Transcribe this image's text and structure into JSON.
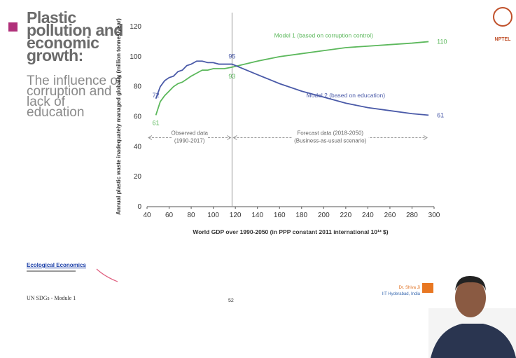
{
  "slide": {
    "title": "Plastic pollution and economic growth:",
    "subtitle": "The influence of corruption and lack of education",
    "source_link": "Ecological Economics",
    "footer_left": "UN SDGs - Module 1",
    "page_number": "52",
    "presenter": "Dr. Shiva Ji",
    "affiliation": "IIT Hyderabad, India",
    "logo_text": "NPTEL"
  },
  "chart_data": {
    "type": "line",
    "x_label": "World GDP over 1990-2050 (in PPP constant 2011 international 10¹³ $)",
    "y_label": "Annual plastic waste inadequately managed globally (million tonnes/year)",
    "x": [
      48,
      52,
      56,
      60,
      64,
      68,
      72,
      76,
      80,
      85,
      90,
      95,
      100,
      105,
      110,
      117,
      140,
      160,
      180,
      200,
      220,
      240,
      260,
      280,
      295
    ],
    "series": [
      {
        "name": "Model 1 (based on corruption control)",
        "color": "#5cb85c",
        "values": [
          61,
          70,
          74,
          77,
          80,
          82,
          83,
          85,
          87,
          89,
          91,
          91,
          92,
          92,
          92,
          93,
          97,
          100,
          102,
          104,
          106,
          107,
          108,
          109,
          110
        ]
      },
      {
        "name": "Model 2 (based on education)",
        "color": "#4a5aa8",
        "values": [
          72,
          80,
          84,
          86,
          87,
          90,
          91,
          94,
          95,
          97,
          97,
          96,
          96,
          95,
          95,
          95,
          88,
          82,
          77,
          73,
          69,
          66,
          64,
          62,
          61
        ]
      }
    ],
    "vline": 117,
    "annotations": [
      [
        "Observed data",
        "(1990-2017)"
      ],
      [
        "Forecast data (2018-2050)",
        "(Business-as-usual scenario)"
      ]
    ],
    "xlim": [
      40,
      300
    ],
    "xticks": [
      40,
      60,
      80,
      100,
      120,
      140,
      160,
      180,
      200,
      220,
      240,
      260,
      280,
      300
    ],
    "ylim": [
      0,
      120
    ],
    "yticks": [
      0,
      20,
      40,
      60,
      80,
      100,
      120
    ],
    "grid": false
  }
}
